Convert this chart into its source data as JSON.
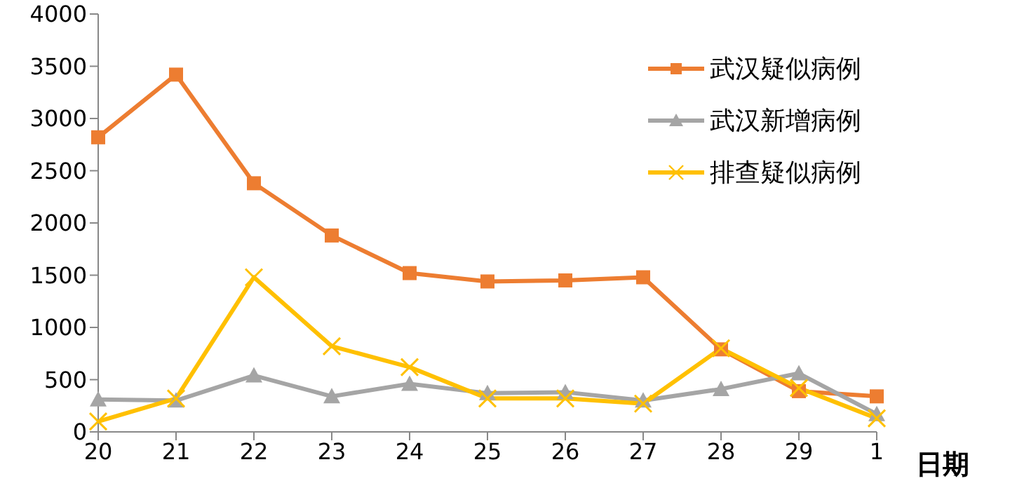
{
  "chart_data": {
    "type": "line",
    "xlabel": "日期",
    "categories": [
      "20",
      "21",
      "22",
      "23",
      "24",
      "25",
      "26",
      "27",
      "28",
      "29",
      "1"
    ],
    "series": [
      {
        "name": "武汉疑似病例",
        "color": "#ed7d31",
        "marker": "square",
        "values": [
          2820,
          3420,
          2380,
          1880,
          1520,
          1440,
          1450,
          1480,
          790,
          390,
          340
        ]
      },
      {
        "name": "武汉新增病例",
        "color": "#a5a5a5",
        "marker": "triangle",
        "values": [
          310,
          300,
          540,
          340,
          460,
          370,
          380,
          300,
          410,
          560,
          170
        ]
      },
      {
        "name": "排查疑似病例",
        "color": "#ffc000",
        "marker": "cross",
        "values": [
          100,
          320,
          1480,
          820,
          620,
          320,
          320,
          270,
          800,
          420,
          130
        ]
      }
    ],
    "ylim": [
      0,
      4000
    ],
    "yticks": [
      0,
      500,
      1000,
      1500,
      2000,
      2500,
      3000,
      3500,
      4000
    ],
    "grid": false,
    "legend": "top right"
  }
}
